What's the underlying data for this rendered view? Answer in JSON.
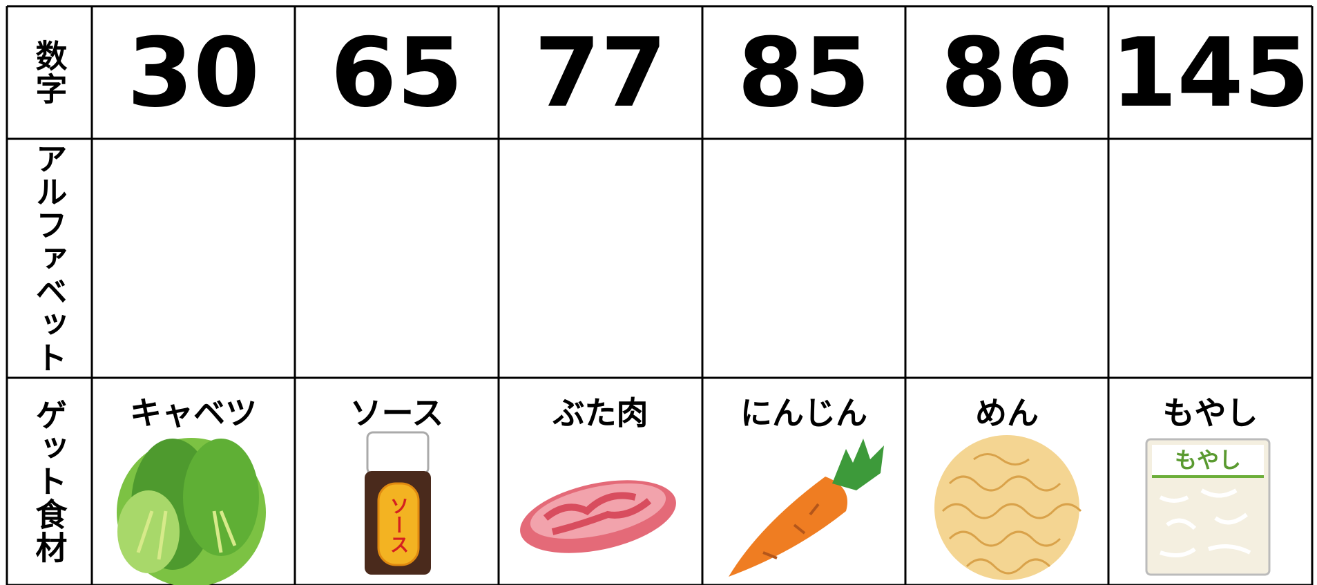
{
  "table": {
    "row_headers": [
      "数字",
      "アルファベット",
      "ゲット食材"
    ],
    "numbers": [
      30,
      65,
      77,
      85,
      86,
      145
    ],
    "foods": [
      "キャベツ",
      "ソース",
      "ぶた肉",
      "にんじん",
      "めん",
      "もやし"
    ],
    "package_labels": {
      "sauce": "ソース",
      "moyashi": "もやし"
    }
  }
}
